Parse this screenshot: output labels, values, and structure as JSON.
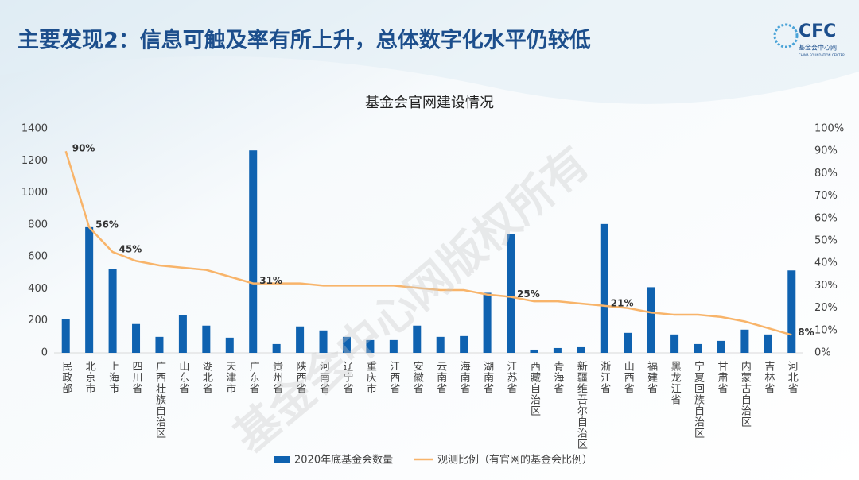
{
  "header": {
    "title": "主要发现2：信息可触及率有所上升，总体数字化水平仍较低",
    "logo": "CFC",
    "logo_subtitle": "基金会中心网",
    "logo_caption": "CHINA FOUNDATION CENTER"
  },
  "watermark": "基金会中心网版权所有",
  "chart_data": {
    "type": "bar-line",
    "title": "基金会官网建设情况",
    "categories": [
      "民政部",
      "北京市",
      "上海市",
      "四川省",
      "广西壮族自治区",
      "山东省",
      "湖北省",
      "天津市",
      "广东省",
      "贵州省",
      "陕西省",
      "河南省",
      "辽宁省",
      "重庆市",
      "江西省",
      "安徽省",
      "云南省",
      "海南省",
      "湖南省",
      "江苏省",
      "西藏自治区",
      "青海省",
      "新疆维吾尔自治区",
      "浙江省",
      "山西省",
      "福建省",
      "黑龙江省",
      "宁夏回族自治区",
      "甘肃省",
      "内蒙古自治区",
      "吉林省",
      "河北省"
    ],
    "series": [
      {
        "name": "2020年底基金会数量",
        "type": "bar",
        "color": "#0f62b0",
        "values": [
          210,
          785,
          525,
          180,
          100,
          235,
          170,
          95,
          1265,
          55,
          165,
          140,
          100,
          80,
          80,
          170,
          100,
          105,
          375,
          740,
          20,
          30,
          35,
          805,
          125,
          410,
          115,
          55,
          75,
          145,
          115,
          515
        ]
      },
      {
        "name": "观测比例（有官网的基金会比例）",
        "type": "line",
        "axis": "y2",
        "color": "#f8b46a",
        "values": [
          90,
          56,
          45,
          41,
          39,
          38,
          37,
          34,
          31,
          31,
          31,
          30,
          30,
          30,
          30,
          29,
          28,
          28,
          26,
          25,
          23,
          23,
          22,
          21,
          20,
          18,
          17,
          17,
          16,
          14,
          11,
          8
        ],
        "value_labels": [
          "90%",
          "56%",
          "45%",
          null,
          null,
          null,
          null,
          null,
          "31%",
          null,
          null,
          null,
          null,
          null,
          null,
          null,
          null,
          null,
          null,
          "25%",
          null,
          null,
          null,
          "21%",
          null,
          null,
          null,
          null,
          null,
          null,
          null,
          "8%"
        ]
      }
    ],
    "ylim": [
      0,
      1400
    ],
    "yticks": [
      0,
      200,
      400,
      600,
      800,
      1000,
      1200,
      1400
    ],
    "y2lim": [
      0,
      100
    ],
    "y2ticks": [
      {
        "value": 0,
        "label": "0%"
      },
      {
        "value": 10,
        "label": "10%"
      },
      {
        "value": 20,
        "label": "20%"
      },
      {
        "value": 30,
        "label": "30%"
      },
      {
        "value": 40,
        "label": "40%"
      },
      {
        "value": 50,
        "label": "50%"
      },
      {
        "value": 60,
        "label": "60%"
      },
      {
        "value": 70,
        "label": "70%"
      },
      {
        "value": 80,
        "label": "80%"
      },
      {
        "value": 90,
        "label": "90%"
      },
      {
        "value": 100,
        "label": "100%"
      }
    ]
  }
}
